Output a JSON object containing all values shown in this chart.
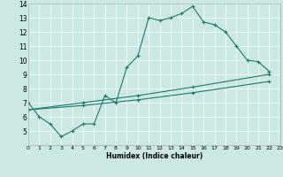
{
  "xlabel": "Humidex (Indice chaleur)",
  "xlim": [
    0,
    23
  ],
  "ylim": [
    4,
    14
  ],
  "yticks": [
    5,
    6,
    7,
    8,
    9,
    10,
    11,
    12,
    13,
    14
  ],
  "xticks": [
    0,
    1,
    2,
    3,
    4,
    5,
    6,
    7,
    8,
    9,
    10,
    11,
    12,
    13,
    14,
    15,
    16,
    17,
    18,
    19,
    20,
    21,
    22,
    23
  ],
  "bg_color": "#cce8e4",
  "line_color": "#1a7a6e",
  "line1_x": [
    0,
    1,
    2,
    3,
    4,
    5,
    6,
    7,
    8,
    9,
    10,
    11,
    12,
    13,
    14,
    15,
    16,
    17,
    18,
    19,
    20,
    21,
    22
  ],
  "line1_y": [
    7.0,
    6.0,
    5.5,
    4.6,
    5.0,
    5.5,
    5.5,
    7.5,
    7.0,
    9.5,
    10.3,
    13.0,
    12.8,
    13.0,
    13.3,
    13.8,
    12.7,
    12.5,
    12.0,
    11.0,
    10.0,
    9.9,
    9.2
  ],
  "line2_x": [
    0,
    5,
    10,
    15,
    22
  ],
  "line2_y": [
    6.5,
    7.0,
    7.5,
    8.1,
    9.0
  ],
  "line3_x": [
    0,
    5,
    10,
    15,
    22
  ],
  "line3_y": [
    6.5,
    6.8,
    7.2,
    7.7,
    8.5
  ]
}
